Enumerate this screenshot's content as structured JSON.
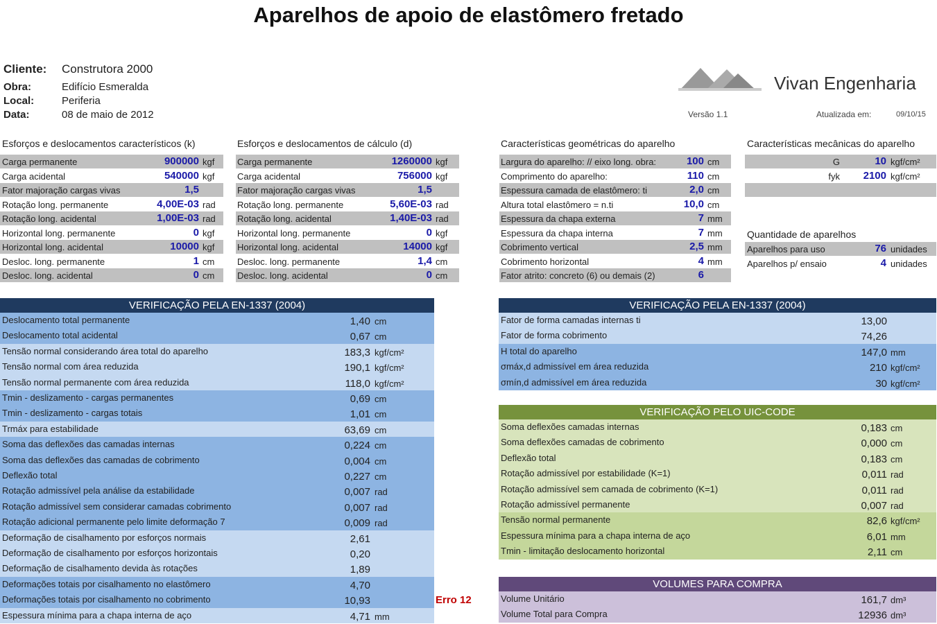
{
  "title": "Aparelhos de apoio de elastômero fretado",
  "header": {
    "cliente_label": "Cliente:",
    "cliente": "Construtora 2000",
    "obra_label": "Obra:",
    "obra": "Edifício Esmeralda",
    "local_label": "Local:",
    "local": "Periferia",
    "data_label": "Data:",
    "data": "08 de maio de 2012",
    "company": "Vivan Engenharia",
    "version": "Versão 1.1",
    "updated_label": "Atualizada em:",
    "updated": "09/10/15"
  },
  "inputs": [
    {
      "title": "Esforços e deslocamentos característicos (k)",
      "rows": [
        [
          "Carga permanente",
          "900000",
          "kgf"
        ],
        [
          "Carga acidental",
          "540000",
          "kgf"
        ],
        [
          "Fator majoração cargas vivas",
          "1,5",
          ""
        ],
        [
          "Rotação long. permanente",
          "4,00E-03",
          "rad"
        ],
        [
          "Rotação long. acidental",
          "1,00E-03",
          "rad"
        ],
        [
          "Horizontal long. permanente",
          "0",
          "kgf"
        ],
        [
          "Horizontal long. acidental",
          "10000",
          "kgf"
        ],
        [
          "Desloc. long. permanente",
          "1",
          "cm"
        ],
        [
          "Desloc. long. acidental",
          "0",
          "cm"
        ]
      ]
    },
    {
      "title": "Esforços e deslocamentos de cálculo (d)",
      "rows": [
        [
          "Carga permanente",
          "1260000",
          "kgf"
        ],
        [
          "Carga acidental",
          "756000",
          "kgf"
        ],
        [
          "Fator majoração cargas vivas",
          "1,5",
          ""
        ],
        [
          "Rotação long. permanente",
          "5,60E-03",
          "rad"
        ],
        [
          "Rotação long. acidental",
          "1,40E-03",
          "rad"
        ],
        [
          "Horizontal long. permanente",
          "0",
          "kgf"
        ],
        [
          "Horizontal long. acidental",
          "14000",
          "kgf"
        ],
        [
          "Desloc. long. permanente",
          "1,4",
          "cm"
        ],
        [
          "Desloc. long. acidental",
          "0",
          "cm"
        ]
      ]
    },
    {
      "title": "Características geométricas do aparelho",
      "rows": [
        [
          "Largura do aparelho: // eixo long. obra:",
          "100",
          "cm"
        ],
        [
          "Comprimento do aparelho:",
          "110",
          "cm"
        ],
        [
          "Espessura camada de elastômero: ti",
          "2,0",
          "cm"
        ],
        [
          "Altura total elastômero = n.ti",
          "10,0",
          "cm"
        ],
        [
          "Espessura da chapa externa",
          "7",
          "mm"
        ],
        [
          "Espessura da chapa interna",
          "7",
          "mm"
        ],
        [
          "Cobrimento vertical",
          "2,5",
          "mm"
        ],
        [
          "Cobrimento horizontal",
          "4",
          "mm"
        ],
        [
          "Fator atrito: concreto (6) ou demais (2)",
          "6",
          ""
        ]
      ]
    },
    {
      "title": "Características mecânicas do aparelho",
      "rows": [
        [
          "G",
          "10",
          "kgf/cm²"
        ],
        [
          "fyk",
          "2100",
          "kgf/cm²"
        ]
      ]
    },
    {
      "title": "Quantidade de aparelhos",
      "rows": [
        [
          "Aparelhos para uso",
          "76",
          "unidades"
        ],
        [
          "Aparelhos p/ ensaio",
          "4",
          "unidades"
        ]
      ]
    }
  ],
  "tables": [
    {
      "title": "VERIFICAÇÃO PELA EN-1337 (2004)",
      "rows": [
        [
          "Deslocamento total permanente",
          "1,40",
          "cm"
        ],
        [
          "Deslocamento total acidental",
          "0,67",
          "cm"
        ],
        [
          "Tensão normal considerando área total do aparelho",
          "183,3",
          "kgf/cm²"
        ],
        [
          "Tensão normal com área reduzida",
          "190,1",
          "kgf/cm²"
        ],
        [
          "Tensão normal permanente com área reduzida",
          "118,0",
          "kgf/cm²"
        ],
        [
          "Tmin - deslizamento - cargas permanentes",
          "0,69",
          "cm"
        ],
        [
          "Tmin - deslizamento - cargas totais",
          "1,01",
          "cm"
        ],
        [
          "Trmáx para estabilidade",
          "63,69",
          "cm"
        ],
        [
          "Soma das deflexões das camadas internas",
          "0,224",
          "cm"
        ],
        [
          "Soma das deflexões das camadas de cobrimento",
          "0,004",
          "cm"
        ],
        [
          "Deflexão total",
          "0,227",
          "cm"
        ],
        [
          "Rotação admissível pela análise da estabilidade",
          "0,007",
          "rad"
        ],
        [
          "Rotação admissível sem considerar camadas cobrimento",
          "0,007",
          "rad"
        ],
        [
          "Rotação adicional permanente pelo limite deformação 7",
          "0,009",
          "rad"
        ],
        [
          "Deformação de cisalhamento por esforços normais",
          "2,61",
          ""
        ],
        [
          "Deformação de cisalhamento por esforços horizontais",
          "0,20",
          ""
        ],
        [
          "Deformação de cisalhamento devida às rotações",
          "1,89",
          ""
        ],
        [
          "Deformações totais por cisalhamento no elastômero",
          "4,70",
          ""
        ],
        [
          "Deformações totais por cisalhamento no cobrimento",
          "10,93",
          ""
        ],
        [
          "Espessura mínima para a chapa interna de aço",
          "4,71",
          "mm"
        ]
      ]
    },
    {
      "title": "VERIFICAÇÃO PELA EN-1337 (2004)",
      "rows": [
        [
          "Fator de forma camadas internas ti",
          "13,00",
          ""
        ],
        [
          "Fator de forma cobrimento",
          "74,26",
          ""
        ],
        [
          "H total do aparelho",
          "147,0",
          "mm"
        ],
        [
          "σmáx,d admissível em área reduzida",
          "210",
          "kgf/cm²"
        ],
        [
          "σmín,d admissível em área reduzida",
          "30",
          "kgf/cm²"
        ]
      ]
    },
    {
      "title": "VERIFICAÇÃO PELO UIC-CODE",
      "rows": [
        [
          "Soma deflexões camadas internas",
          "0,183",
          "cm"
        ],
        [
          "Soma deflexões camadas de cobrimento",
          "0,000",
          "cm"
        ],
        [
          "Deflexão total",
          "0,183",
          "cm"
        ],
        [
          "Rotação admissível por estabilidade (K=1)",
          "0,011",
          "rad"
        ],
        [
          "Rotação admissível sem camada de cobrimento (K=1)",
          "0,011",
          "rad"
        ],
        [
          "Rotação admissível permanente",
          "0,007",
          "rad"
        ],
        [
          "Tensão normal permanente",
          "82,6",
          "kgf/cm²"
        ],
        [
          "Espessura mínima para a chapa interna de aço",
          "6,01",
          "mm"
        ],
        [
          "Tmin - limitação deslocamento horizontal",
          "2,11",
          "cm"
        ]
      ]
    },
    {
      "title": "VOLUMES PARA COMPRA",
      "rows": [
        [
          "Volume Unitário",
          "161,7",
          "dm³"
        ],
        [
          "Volume Total para Compra",
          "12936",
          "dm³"
        ]
      ]
    }
  ],
  "error_note": "Erro 12"
}
